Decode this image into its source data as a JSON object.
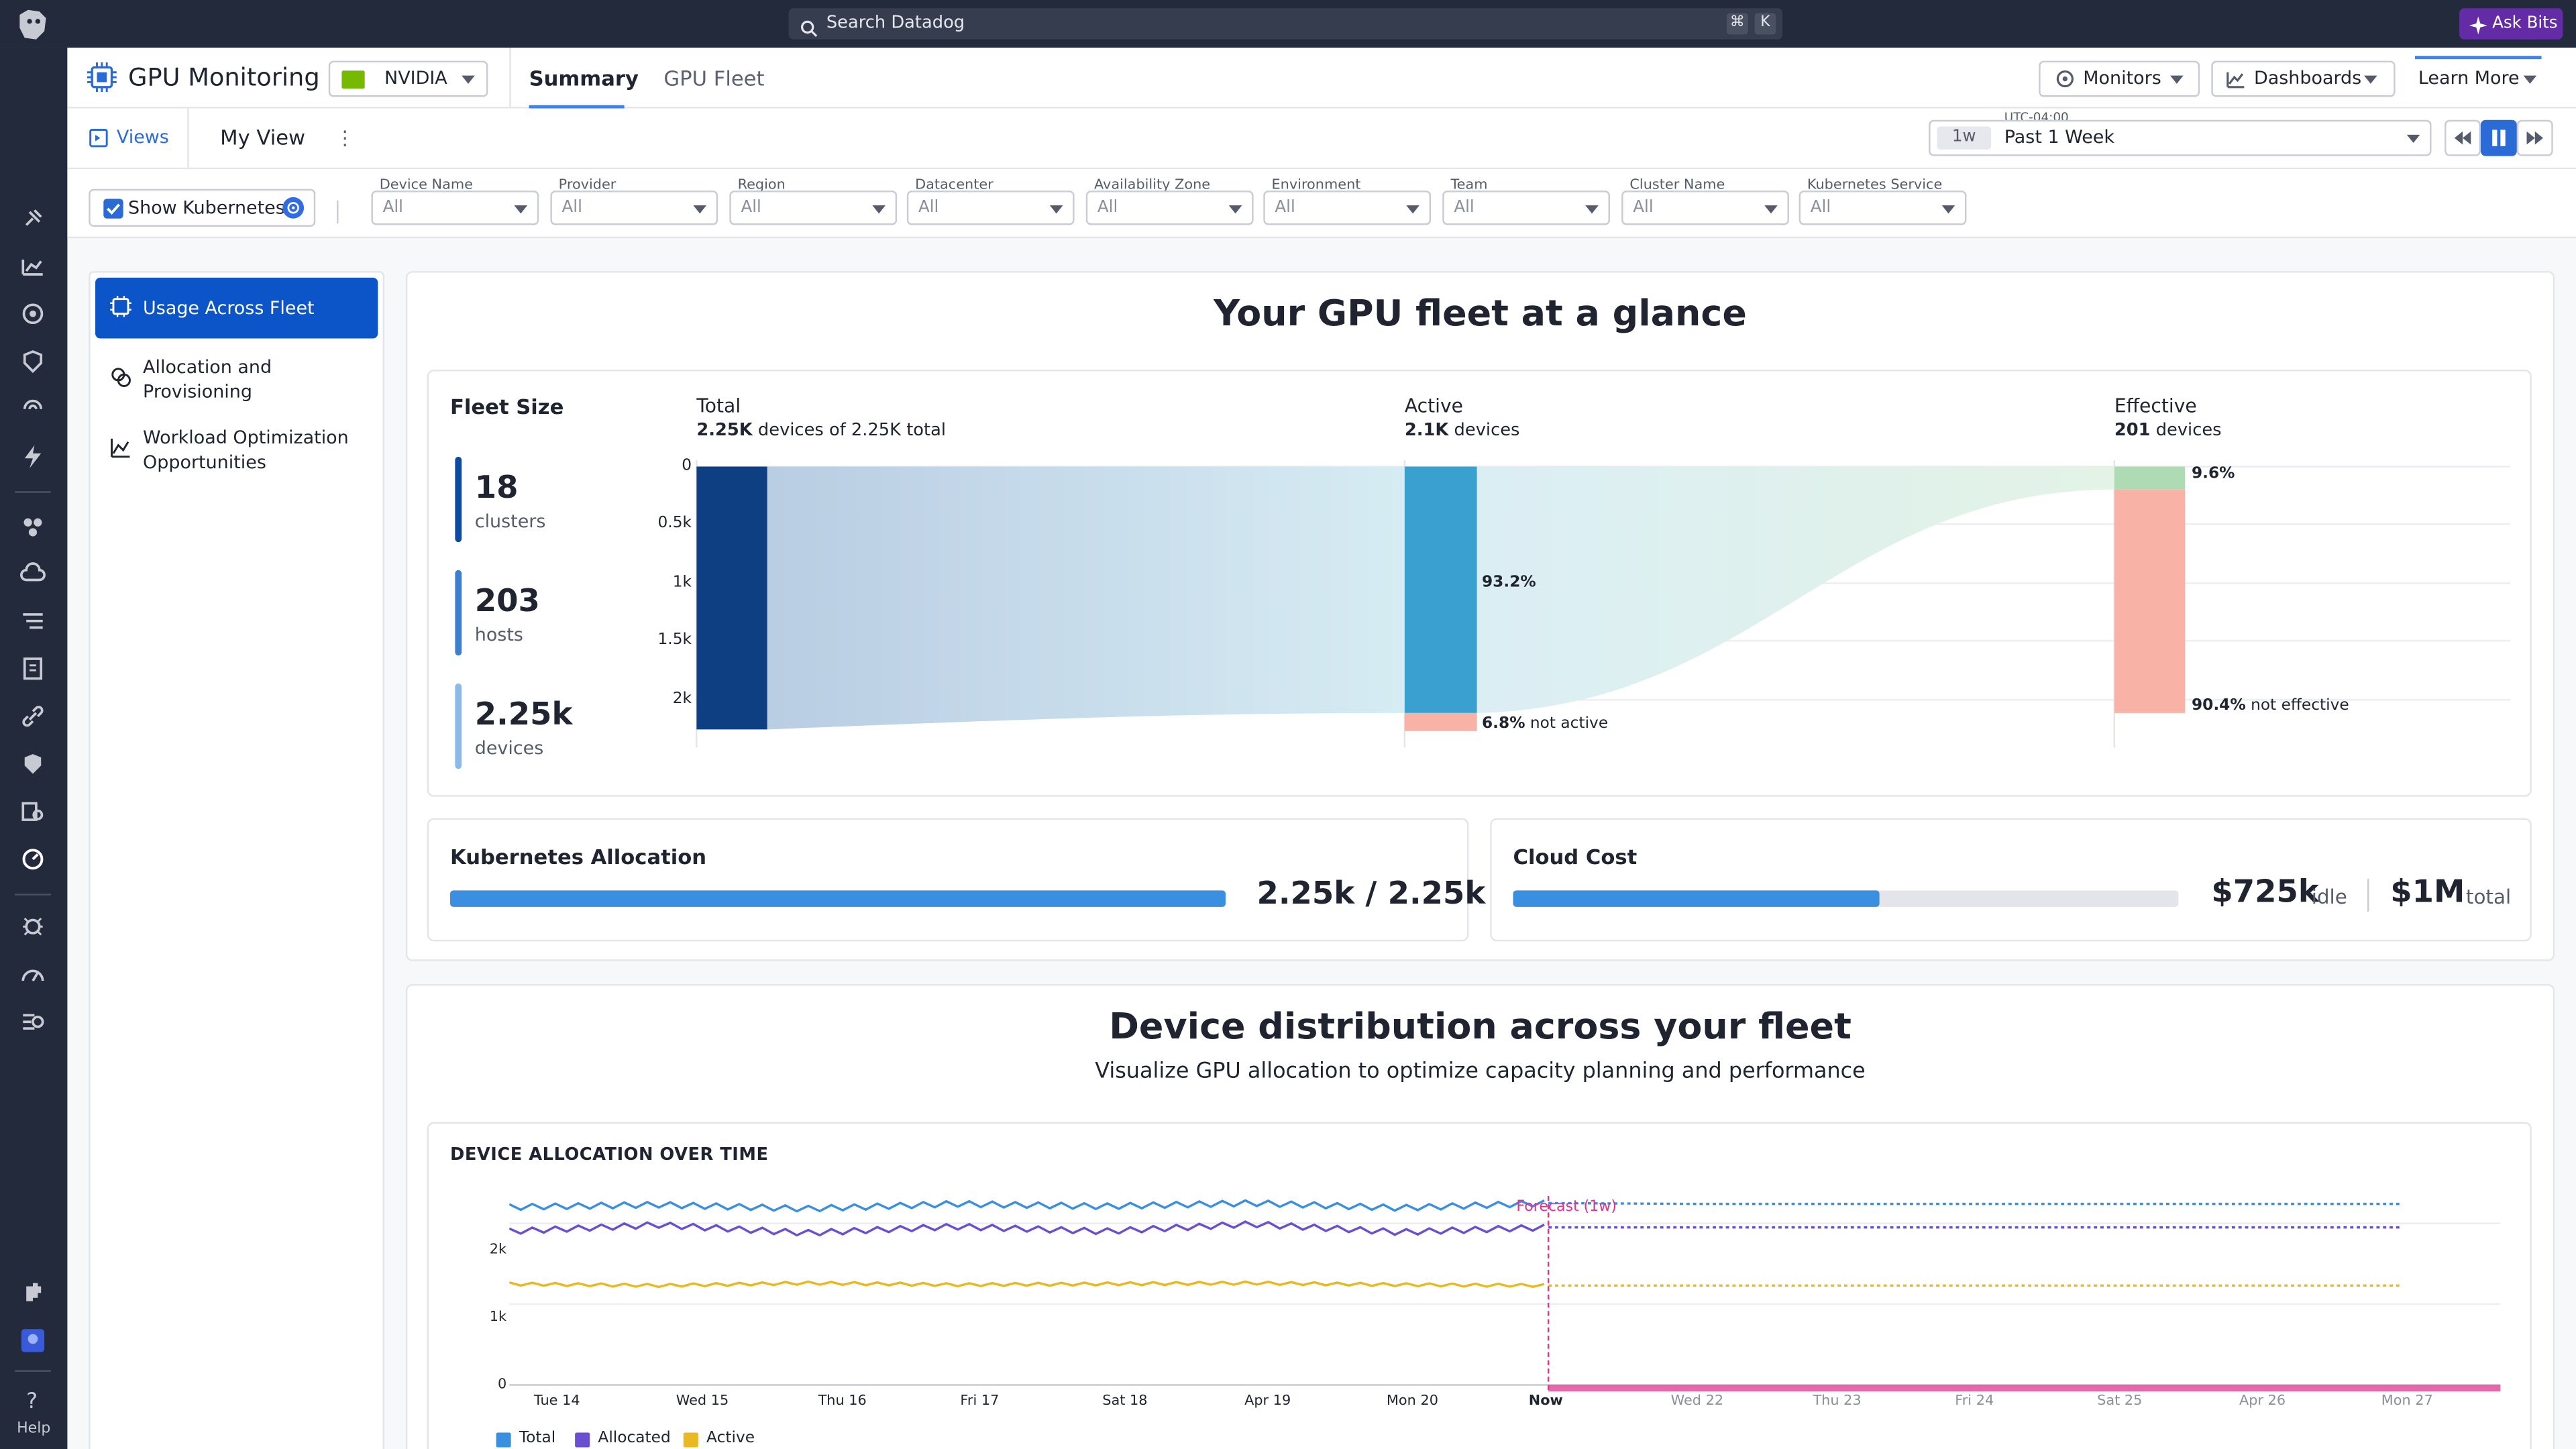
{
  "topbar": {
    "search_placeholder": "Search Datadog",
    "shortcut_keys": [
      "⌘",
      "K"
    ],
    "ask_bits": "Ask Bits"
  },
  "header": {
    "title": "GPU Monitoring",
    "vendor": "NVIDIA",
    "tabs": [
      {
        "label": "Summary",
        "active": true
      },
      {
        "label": "GPU Fleet",
        "active": false
      }
    ],
    "monitors": "Monitors",
    "dashboards": "Dashboards",
    "learn_more": "Learn More"
  },
  "viewbar": {
    "views": "Views",
    "my_view": "My View",
    "timezone": "UTC-04:00",
    "time_chip": "1w",
    "time_range": "Past 1 Week"
  },
  "filters": {
    "show_kubernetes": "Show Kubernetes",
    "items": [
      {
        "label": "Device Name",
        "value": "All"
      },
      {
        "label": "Provider",
        "value": "All"
      },
      {
        "label": "Region",
        "value": "All"
      },
      {
        "label": "Datacenter",
        "value": "All"
      },
      {
        "label": "Availability Zone",
        "value": "All"
      },
      {
        "label": "Environment",
        "value": "All"
      },
      {
        "label": "Team",
        "value": "All"
      },
      {
        "label": "Cluster Name",
        "value": "All"
      },
      {
        "label": "Kubernetes Service",
        "value": "All"
      }
    ]
  },
  "sidemenu": {
    "items": [
      {
        "label": "Usage Across Fleet",
        "active": true
      },
      {
        "label": "Allocation and Provisioning",
        "active": false
      },
      {
        "label": "Workload Optimization Opportunities",
        "active": false
      }
    ]
  },
  "glance": {
    "title": "Your GPU fleet at a glance",
    "fleet_size": {
      "title": "Fleet Size",
      "stats": [
        {
          "value": "18",
          "label": "clusters"
        },
        {
          "value": "203",
          "label": "hosts"
        },
        {
          "value": "2.25k",
          "label": "devices"
        }
      ]
    },
    "sankey": {
      "y_ticks": [
        "0",
        "0.5k",
        "1k",
        "1.5k",
        "2k"
      ],
      "total": {
        "heading": "Total",
        "bold": "2.25K",
        "text": " devices of 2.25K total"
      },
      "active": {
        "heading": "Active",
        "bold": "2.1K",
        "text": " devices",
        "active_pct": "93.2%",
        "not_active_pct": "6.8%",
        "not_active_text": " not active"
      },
      "effective": {
        "heading": "Effective",
        "bold": "201",
        "text": " devices",
        "effective_pct": "9.6%",
        "not_effective_pct": "90.4%",
        "not_effective_text": " not effective"
      }
    },
    "kubernetes": {
      "title": "Kubernetes Allocation",
      "value": "2.25k / 2.25k",
      "fraction": 1.0
    },
    "cloud_cost": {
      "title": "Cloud Cost",
      "idle_value": "$725k",
      "idle_label": "idle",
      "total_value": "$1M",
      "total_label": "total",
      "fraction": 0.55
    }
  },
  "distribution": {
    "title": "Device distribution across your fleet",
    "subtitle": "Visualize GPU allocation to optimize capacity planning and performance",
    "chart_title": "DEVICE ALLOCATION OVER TIME",
    "forecast_label": "Forecast (1w)"
  },
  "chart_data": {
    "type": "line",
    "title": "DEVICE ALLOCATION OVER TIME",
    "y_ticks": [
      "0",
      "1k",
      "2k"
    ],
    "ylim": [
      0,
      2500
    ],
    "x_ticks": [
      "Tue 14",
      "Wed 15",
      "Thu 16",
      "Fri 17",
      "Sat 18",
      "Apr 19",
      "Mon 20",
      "Now",
      "Wed 22",
      "Thu 23",
      "Fri 24",
      "Sat 25",
      "Apr 26",
      "Mon 27"
    ],
    "now_index": 7,
    "legend_position": "bottom-left",
    "series": [
      {
        "name": "Total",
        "color": "#3a8fe0",
        "values": [
          2200,
          2230,
          2180,
          2240,
          2210,
          2250,
          2190,
          2250,
          2240,
          2240,
          2240,
          2240,
          2240,
          2240
        ]
      },
      {
        "name": "Allocated",
        "color": "#6a4fd0",
        "values": [
          1900,
          1980,
          1880,
          1960,
          1900,
          1990,
          1890,
          1950,
          1950,
          1950,
          1950,
          1950,
          1950,
          1950
        ]
      },
      {
        "name": "Active",
        "color": "#e8b923",
        "values": [
          1250,
          1230,
          1260,
          1240,
          1250,
          1260,
          1240,
          1230,
          1230,
          1230,
          1230,
          1230,
          1230,
          1230
        ]
      }
    ],
    "forecast": {
      "label": "Forecast (1w)",
      "color": "#e0338f"
    }
  }
}
